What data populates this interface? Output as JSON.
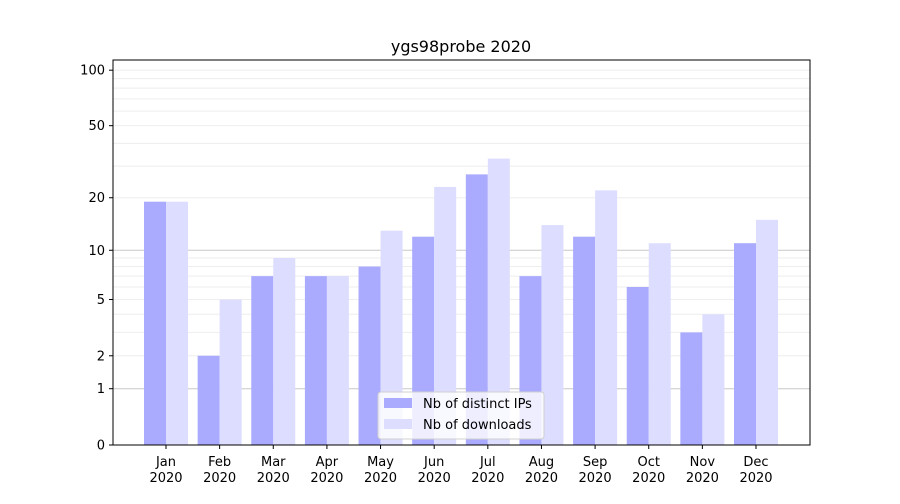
{
  "chart_data": {
    "type": "bar",
    "title": "ygs98probe 2020",
    "xlabel": "",
    "ylabel": "",
    "yscale": "log(1+y)",
    "ylim": [
      0,
      110
    ],
    "yticks": [
      0,
      1,
      2,
      5,
      10,
      20,
      50,
      100
    ],
    "categories": [
      "Jan\n2020",
      "Feb\n2020",
      "Mar\n2020",
      "Apr\n2020",
      "May\n2020",
      "Jun\n2020",
      "Jul\n2020",
      "Aug\n2020",
      "Sep\n2020",
      "Oct\n2020",
      "Nov\n2020",
      "Dec\n2020"
    ],
    "series": [
      {
        "name": "Nb of distinct IPs",
        "color": "#aaaaff",
        "values": [
          19,
          2,
          7,
          7,
          8,
          12,
          27,
          7,
          12,
          6,
          3,
          11
        ]
      },
      {
        "name": "Nb of downloads",
        "color": "#ddddff",
        "values": [
          19,
          5,
          9,
          7,
          13,
          23,
          33,
          14,
          22,
          11,
          4,
          15
        ]
      }
    ],
    "grid": {
      "major_y": [
        1,
        10
      ],
      "minor_y": true
    },
    "legend_position": "bottom-center"
  }
}
